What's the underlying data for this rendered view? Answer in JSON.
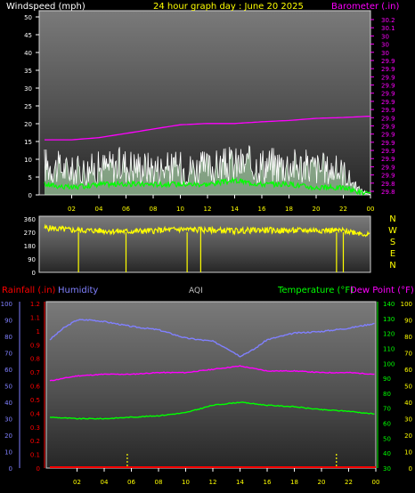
{
  "colors": {
    "windspeed": "#ffffff",
    "wind_avg": "#00ff00",
    "wind_gust_fill": "#c8ffc8",
    "barometer": "#ff00ff",
    "direction": "#ffff00",
    "rain": "#ff0000",
    "humidity": "#8080ff",
    "temperature": "#00ff00",
    "dewpoint": "#ff00ff",
    "aqi_label": "#c0c0c0",
    "hour_labels": "#ffff00",
    "aqi_bars": "#ffff00"
  },
  "header": {
    "windspeed_label": "Windspeed (mph)",
    "title": "24 hour graph day : June 20 2025",
    "barometer_label": "Barometer (.in)"
  },
  "footer": {
    "rainfall_label": "Rainfall (.in)",
    "humidity_label": "Humidity",
    "aqi_label": "AQI",
    "temperature_label": "Temperature (°F)",
    "dewpoint_label": "Dew Point (°F)"
  },
  "chart_data": [
    {
      "type": "line",
      "x_ticks": [
        "02",
        "04",
        "06",
        "08",
        "10",
        "12",
        "14",
        "16",
        "18",
        "20",
        "22",
        "00"
      ],
      "left_axis": {
        "label": "Windspeed (mph)",
        "ylim": [
          0,
          50
        ],
        "ticks": [
          "0",
          "5",
          "10",
          "15",
          "20",
          "25",
          "30",
          "35",
          "40",
          "45",
          "50"
        ]
      },
      "right_axis": {
        "label": "Barometer (.in)",
        "ylim": [
          29.8,
          30.2
        ],
        "ticks": [
          "29.8",
          "29.8",
          "29.9",
          "29.9",
          "29.9",
          "29.9",
          "29.9",
          "29.9",
          "29.9",
          "29.9",
          "29.9",
          "29.9",
          "29.9",
          "29.9",
          "29.9",
          "29.9",
          "29.9",
          "30",
          "30",
          "30",
          "30.1",
          "30.2"
        ]
      },
      "series": [
        {
          "name": "Barometer (.in)",
          "axis": "right",
          "x": [
            0,
            2,
            4,
            6,
            8,
            10,
            12,
            14,
            16,
            18,
            20,
            22,
            24
          ],
          "values": [
            29.92,
            29.92,
            29.925,
            29.935,
            29.945,
            29.955,
            29.958,
            29.958,
            29.962,
            29.965,
            29.97,
            29.972,
            29.975
          ]
        },
        {
          "name": "Windspeed (mph)",
          "axis": "left",
          "x": [
            0,
            2,
            4,
            6,
            8,
            10,
            12,
            14,
            16,
            18,
            20,
            22,
            23,
            24
          ],
          "values": [
            9,
            7,
            8,
            9,
            8,
            8,
            8,
            9,
            9,
            9,
            8,
            7,
            2,
            0
          ]
        },
        {
          "axis": "left",
          "x": [
            0,
            2,
            4,
            6,
            8,
            10,
            12,
            14,
            16,
            18,
            20,
            22,
            23,
            24
          ],
          "values": [
            3,
            2,
            3,
            3,
            3,
            3,
            3,
            4,
            3,
            3,
            2,
            2,
            1,
            0
          ]
        }
      ]
    },
    {
      "type": "scatter",
      "x_ticks": [],
      "ylim": [
        0,
        360
      ],
      "y_ticks": [
        "0",
        "90",
        "180",
        "270",
        "360"
      ],
      "compass_labels": [
        "N",
        "W",
        "S",
        "E",
        "N"
      ],
      "series": [
        {
          "axis": "left",
          "x": [
            0,
            2,
            4,
            6,
            8,
            10,
            12,
            14,
            16,
            18,
            20,
            22,
            23,
            24
          ],
          "values": [
            300,
            285,
            280,
            275,
            280,
            290,
            285,
            280,
            285,
            280,
            285,
            280,
            270,
            250
          ]
        }
      ]
    },
    {
      "type": "line",
      "x_ticks": [
        "02",
        "04",
        "06",
        "08",
        "10",
        "12",
        "14",
        "16",
        "18",
        "20",
        "22",
        "00"
      ],
      "rain_axis": {
        "label": "Rainfall (.in)",
        "ylim": [
          0,
          1.2
        ],
        "ticks": [
          "0",
          "0.1",
          "0.2",
          "0.3",
          "0.4",
          "0.5",
          "0.6",
          "0.7",
          "0.8",
          "0.9",
          "1",
          "1.1",
          "1.2"
        ]
      },
      "humidity_axis": {
        "label": "Humidity",
        "ylim": [
          0,
          100
        ],
        "ticks": [
          "0",
          "10",
          "20",
          "30",
          "40",
          "50",
          "60",
          "70",
          "80",
          "90",
          "100"
        ]
      },
      "temperature_axis": {
        "label": "Temperature (°F)",
        "ylim": [
          30,
          140
        ],
        "ticks": [
          "30",
          "40",
          "50",
          "60",
          "70",
          "80",
          "90",
          "100",
          "110",
          "120",
          "130",
          "140"
        ]
      },
      "dewpoint_axis": {
        "label": "Dew Point (°F)",
        "ylim": [
          0,
          100
        ],
        "ticks": [
          "0",
          "10",
          "20",
          "30",
          "40",
          "50",
          "60",
          "70",
          "80",
          "90",
          "100"
        ]
      },
      "series": [
        {
          "name": "Humidity",
          "axis": "humidity",
          "x": [
            0,
            1,
            2,
            3,
            4,
            6,
            8,
            10,
            12,
            13,
            14,
            15,
            16,
            18,
            20,
            22,
            24
          ],
          "values": [
            78,
            85,
            90,
            90,
            89,
            86,
            84,
            79,
            77,
            73,
            68,
            72,
            78,
            82,
            83,
            85,
            88
          ]
        },
        {
          "name": "Temperature (°F)",
          "axis": "temperature",
          "x": [
            0,
            2,
            4,
            6,
            8,
            10,
            12,
            14,
            16,
            18,
            20,
            22,
            24
          ],
          "values": [
            64,
            63,
            63,
            64,
            65,
            67,
            72,
            74,
            72,
            71,
            69,
            68,
            66
          ]
        },
        {
          "name": "Dew Point (°F)",
          "axis": "dewpoint",
          "x": [
            0,
            2,
            4,
            6,
            8,
            10,
            12,
            14,
            16,
            18,
            20,
            22,
            24
          ],
          "values": [
            53,
            56,
            57,
            57,
            58,
            58,
            60,
            62,
            59,
            59,
            58,
            58,
            57
          ]
        },
        {
          "name": "Rainfall (.in)",
          "axis": "rain",
          "x": [
            0,
            24
          ],
          "values": [
            0,
            0
          ]
        },
        {
          "name": "AQI",
          "x": [
            5.7,
            21.1
          ],
          "values": [
            1,
            1
          ]
        }
      ]
    }
  ]
}
